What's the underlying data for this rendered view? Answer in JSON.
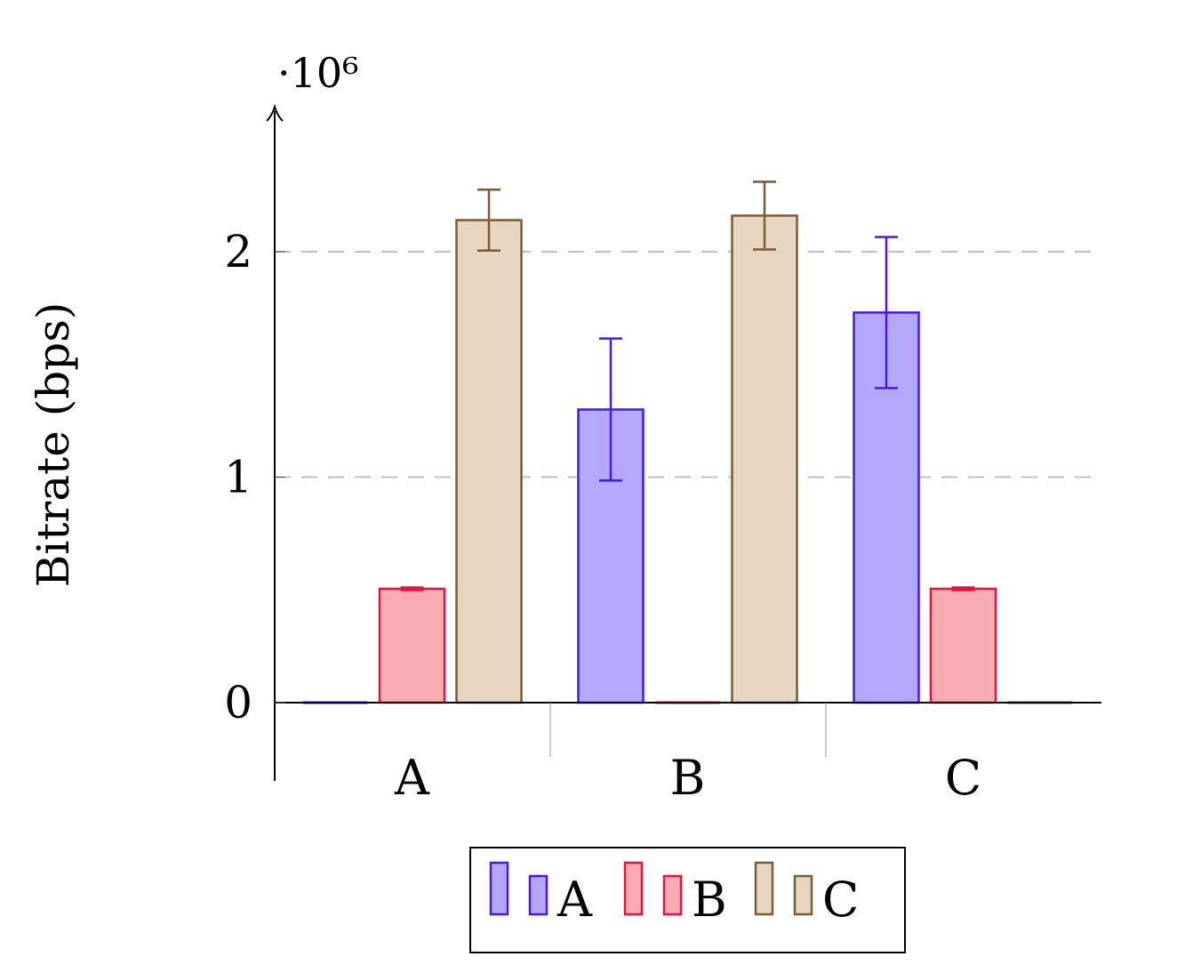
{
  "chart_data": {
    "type": "bar",
    "categories": [
      "A",
      "B",
      "C"
    ],
    "ylabel": "Bitrate (bps)",
    "y_scale_label": "·10⁶",
    "y_multiplier": 1000000,
    "yticks": [
      0,
      1,
      2
    ],
    "ylim": [
      -0.35,
      2.65
    ],
    "grid": "y-dashed",
    "legend_position": "bottom-center",
    "series": [
      {
        "name": "A",
        "color": "#4a16ee",
        "fill": "#b3a8fd",
        "values": [
          0,
          1.3,
          1.73
        ],
        "errors": [
          0,
          0.315,
          0.335
        ]
      },
      {
        "name": "B",
        "color": "#e8123c",
        "fill": "#f7adb3",
        "values": [
          0.505,
          0,
          0.505
        ],
        "errors": [
          0.006,
          0,
          0.006
        ]
      },
      {
        "name": "C",
        "color": "#7a5a38",
        "fill": "#e8d7c0",
        "values": [
          2.14,
          2.16,
          0
        ],
        "errors": [
          0.135,
          0.15,
          0
        ]
      }
    ]
  }
}
